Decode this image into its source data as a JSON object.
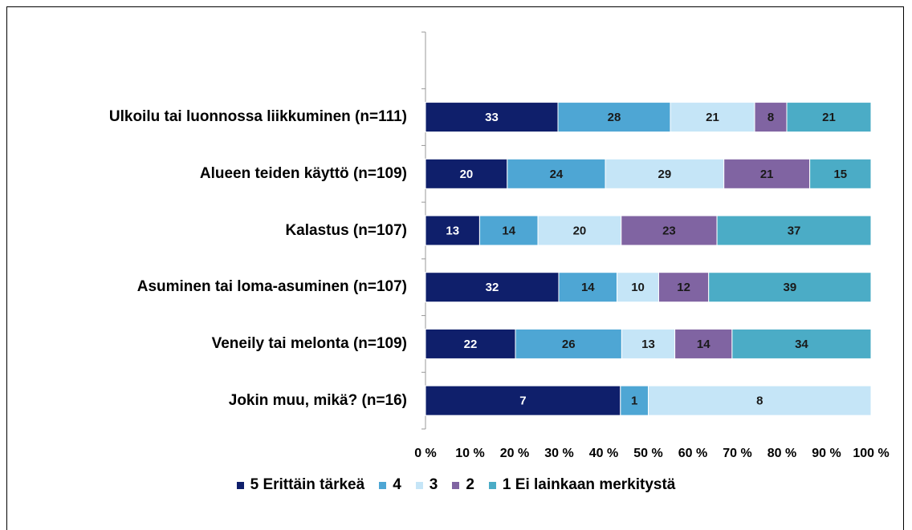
{
  "chart_data": {
    "type": "bar",
    "orientation": "horizontal",
    "stacking": "percent",
    "categories": [
      null,
      "Ulkoilu tai luonnossa liikkuminen (n=111)",
      "Alueen teiden käyttö (n=109)",
      "Kalastus (n=107)",
      "Asuminen tai loma-asuminen (n=107)",
      "Veneily tai melonta (n=109)",
      "Jokin muu, mikä? (n=16)"
    ],
    "series": [
      {
        "name": "5 Erittäin tärkeä",
        "color": "#0f1f6b",
        "values": [
          null,
          33,
          20,
          13,
          32,
          22,
          7
        ]
      },
      {
        "name": "4",
        "color": "#4ea6d4",
        "values": [
          null,
          28,
          24,
          14,
          14,
          26,
          1
        ]
      },
      {
        "name": "3",
        "color": "#c5e5f7",
        "values": [
          null,
          21,
          29,
          20,
          10,
          13,
          8
        ]
      },
      {
        "name": "2",
        "color": "#8064a2",
        "values": [
          null,
          8,
          21,
          23,
          12,
          14,
          null
        ]
      },
      {
        "name": "1 Ei lainkaan merkitystä",
        "color": "#4bacc6",
        "values": [
          null,
          21,
          15,
          37,
          39,
          34,
          null
        ]
      }
    ],
    "xlim": [
      0,
      100
    ],
    "xticks": [
      {
        "value": 0,
        "label": "0 %"
      },
      {
        "value": 10,
        "label": "10 %"
      },
      {
        "value": 20,
        "label": "20 %"
      },
      {
        "value": 30,
        "label": "30 %"
      },
      {
        "value": 40,
        "label": "40 %"
      },
      {
        "value": 50,
        "label": "50 %"
      },
      {
        "value": 60,
        "label": "60 %"
      },
      {
        "value": 70,
        "label": "70 %"
      },
      {
        "value": 80,
        "label": "80 %"
      },
      {
        "value": 90,
        "label": "90 %"
      },
      {
        "value": 100,
        "label": "100 %"
      }
    ],
    "legend": "bottom"
  }
}
